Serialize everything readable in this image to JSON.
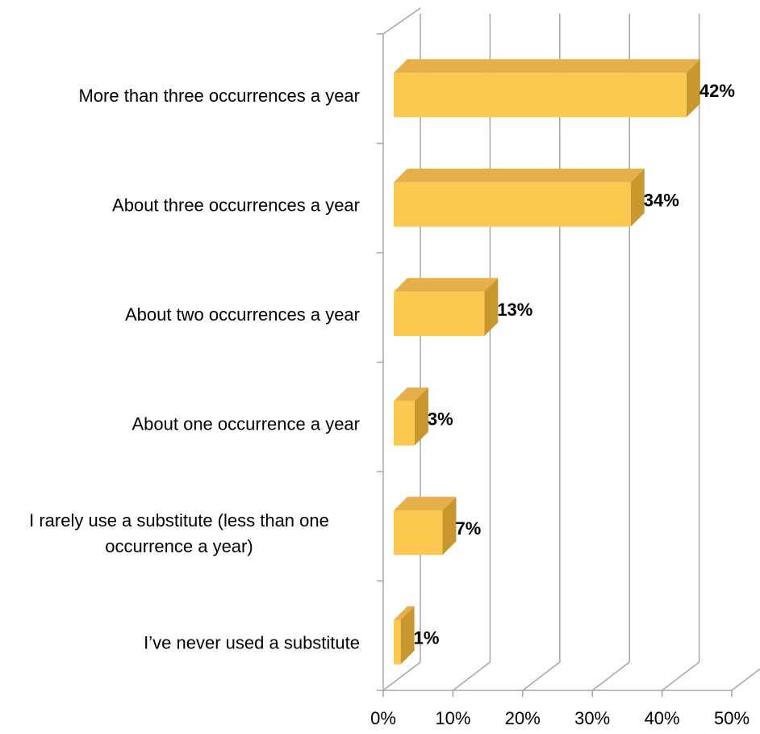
{
  "chart_data": {
    "type": "bar",
    "orientation": "horizontal",
    "style": "3d",
    "categories": [
      "More than three occurrences a year",
      "About three occurrences a year",
      "About two occurrences a year",
      "About one occurrence a year",
      "I rarely use a substitute (less than one occurrence a year)",
      "I’ve never used a substitute"
    ],
    "category_display_lines": [
      [
        "More than three occurrences a year"
      ],
      [
        "About three occurrences a year"
      ],
      [
        "About two occurrences a year"
      ],
      [
        "About one occurrence a year"
      ],
      [
        "I rarely use a substitute (less than one",
        "occurrence a year)"
      ],
      [
        "I’ve never used a substitute"
      ]
    ],
    "values": [
      42,
      34,
      13,
      3,
      7,
      1
    ],
    "data_labels": [
      "42%",
      "34%",
      "13%",
      "3%",
      "7%",
      "1%"
    ],
    "xlim": [
      0,
      50
    ],
    "x_ticks": [
      "0%",
      "10%",
      "20%",
      "30%",
      "40%",
      "50%"
    ],
    "grid": true,
    "legend": "none",
    "colors": {
      "bar_front": "#FDC84F",
      "bar_top": "#E5B04A",
      "bar_side": "#C8982F",
      "grid": "#A6A6A6"
    }
  }
}
